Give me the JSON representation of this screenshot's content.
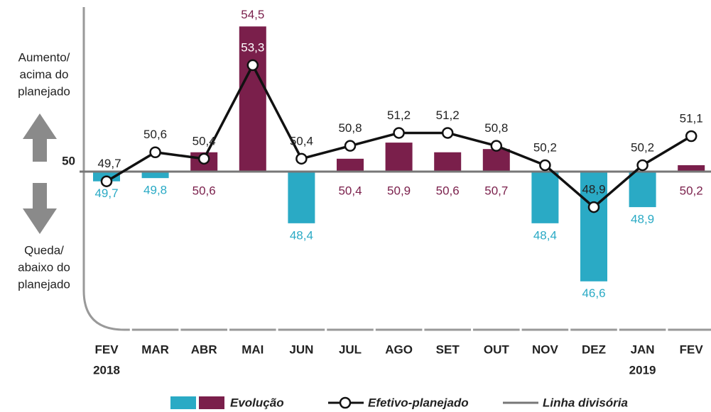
{
  "chart_data": {
    "type": "bar-line",
    "categories": [
      "FEV",
      "MAR",
      "ABR",
      "MAI",
      "JUN",
      "JUL",
      "AGO",
      "SET",
      "OUT",
      "NOV",
      "DEZ",
      "JAN",
      "FEV"
    ],
    "years": [
      "2018",
      null,
      null,
      null,
      null,
      null,
      null,
      null,
      null,
      null,
      null,
      "2019",
      null
    ],
    "ylim": [
      45.1,
      55.1
    ],
    "yticks": [
      50
    ],
    "baseline": 50,
    "series": [
      {
        "name": "Evolução",
        "type": "bar",
        "color_above": "#7a1f4b",
        "color_below": "#2aaac5",
        "values": [
          49.7,
          49.8,
          50.6,
          54.5,
          48.4,
          50.4,
          50.9,
          50.6,
          50.7,
          48.4,
          46.6,
          48.9,
          50.2
        ],
        "value_labels": [
          "49,7",
          "49,8",
          "50,6",
          "54,5",
          "48,4",
          "50,4",
          "50,9",
          "50,6",
          "50,7",
          "48,4",
          "46,6",
          "48,9",
          "50,2"
        ]
      },
      {
        "name": "Efetivo-planejado",
        "type": "line",
        "color": "#111111",
        "values": [
          49.7,
          50.6,
          50.4,
          53.3,
          50.4,
          50.8,
          51.2,
          51.2,
          50.8,
          50.2,
          48.9,
          50.2,
          51.1
        ],
        "value_labels": [
          "49,7",
          "50,6",
          "50,4",
          "53,3",
          "50,4",
          "50,8",
          "51,2",
          "51,2",
          "50,8",
          "50,2",
          "48,9",
          "50,2",
          "51,1"
        ]
      }
    ],
    "divider": {
      "name": "Linha divisória",
      "color": "#777777"
    },
    "annotations": {
      "up": [
        "Aumento/",
        "acima do",
        "planejado"
      ],
      "down": [
        "Queda/",
        "abaixo do",
        "planejado"
      ]
    }
  }
}
